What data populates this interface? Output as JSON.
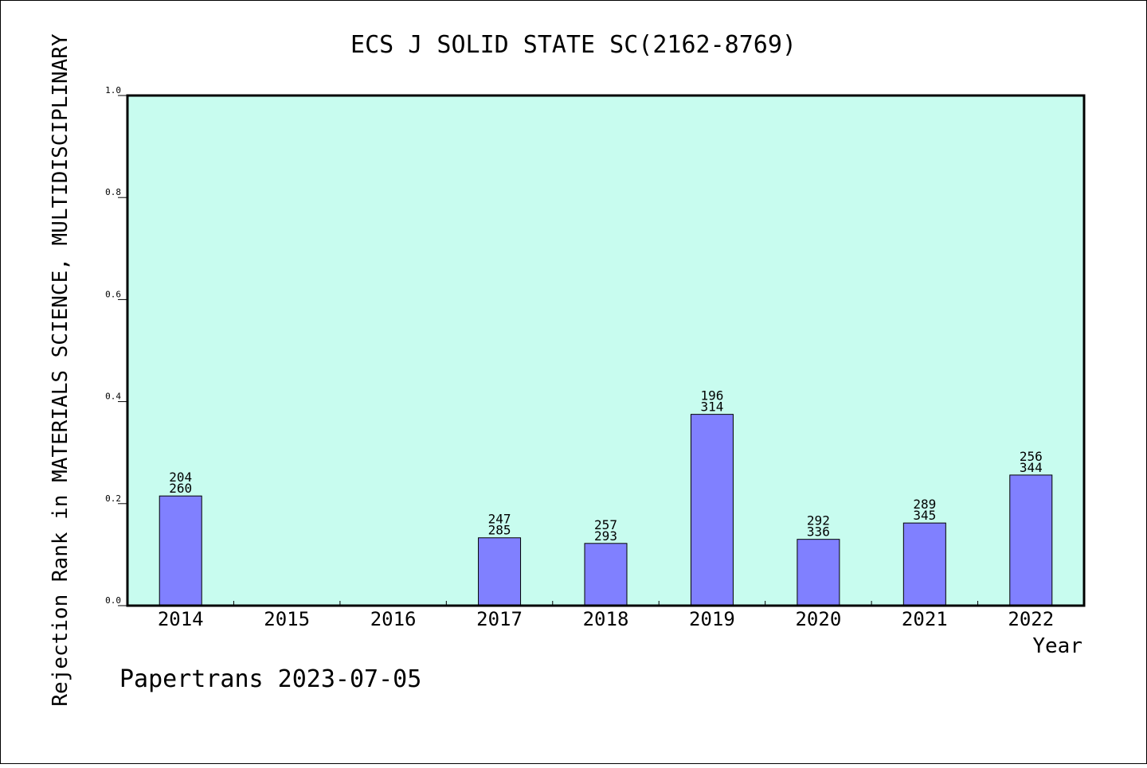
{
  "chart_data": {
    "type": "bar",
    "title": "ECS J SOLID STATE SC(2162-8769)",
    "xlabel": "Year",
    "ylabel": "Rejection Rank in MATERIALS SCIENCE, MULTIDISCIPLINARY",
    "categories": [
      "2014",
      "2015",
      "2016",
      "2017",
      "2018",
      "2019",
      "2020",
      "2021",
      "2022"
    ],
    "values": [
      0.215,
      null,
      null,
      0.133,
      0.122,
      0.375,
      0.13,
      0.162,
      0.256
    ],
    "bar_labels": [
      [
        "204",
        "260"
      ],
      null,
      null,
      [
        "247",
        "285"
      ],
      [
        "257",
        "293"
      ],
      [
        "196",
        "314"
      ],
      [
        "292",
        "336"
      ],
      [
        "289",
        "345"
      ],
      [
        "256",
        "344"
      ]
    ],
    "ylim": [
      0,
      1.0
    ],
    "yticks": [
      "0.0",
      "0.2",
      "0.4",
      "0.6",
      "0.8",
      "1.0"
    ],
    "ytick_values": [
      0,
      0.2,
      0.4,
      0.6,
      0.8,
      1.0
    ],
    "grid": false,
    "colors": {
      "plot_background": "#c8fcef",
      "bar_fill": "#8080ff",
      "bar_stroke": "#000000",
      "frame": "#000000"
    }
  },
  "footer": "Papertrans 2023-07-05"
}
